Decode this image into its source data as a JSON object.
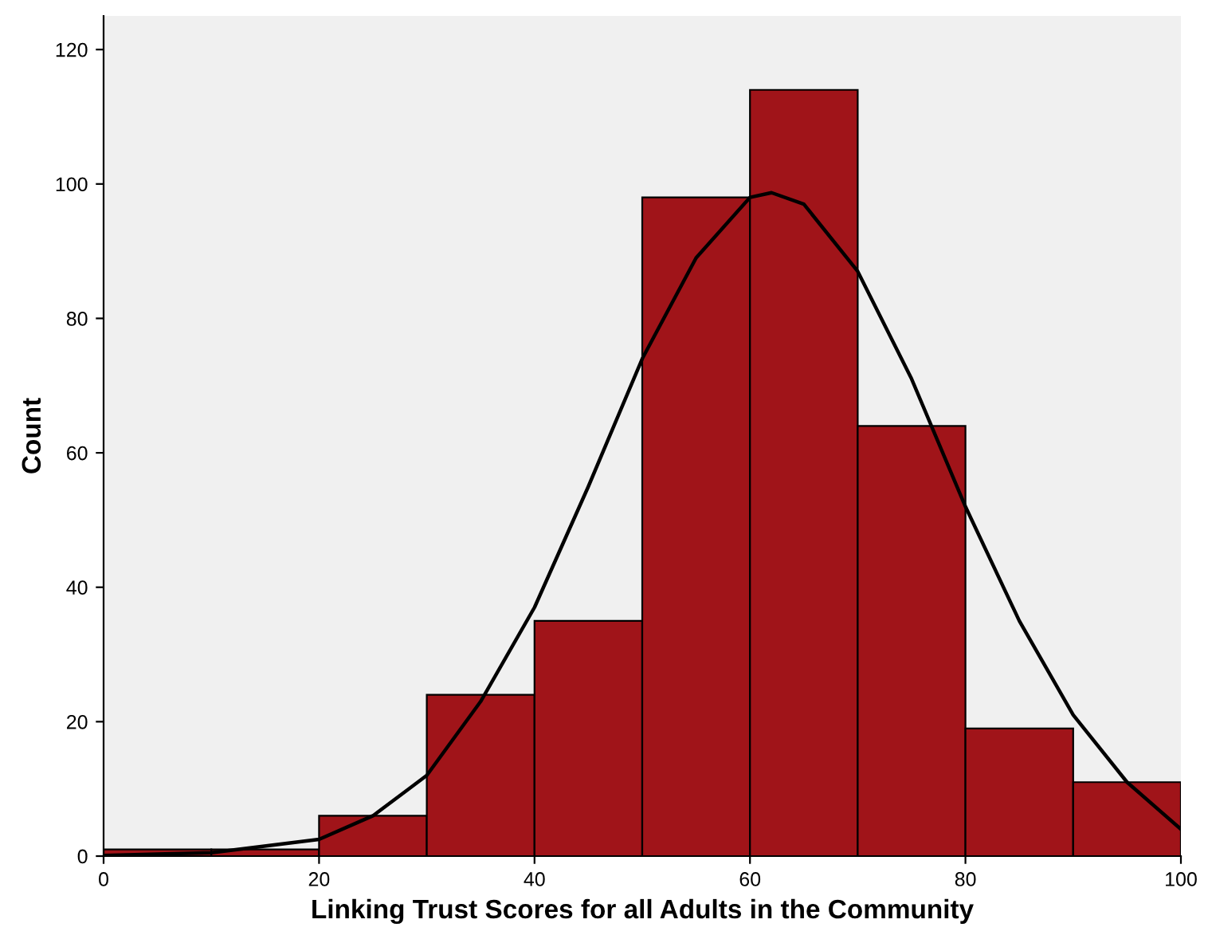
{
  "chart_data": {
    "type": "histogram",
    "xlabel": "Linking Trust Scores for all Adults in the Community",
    "ylabel": "Count",
    "bins": [
      0,
      10,
      20,
      30,
      40,
      50,
      60,
      70,
      80,
      90,
      100
    ],
    "values": [
      1,
      1,
      6,
      24,
      35,
      98,
      114,
      64,
      19,
      11
    ],
    "color": "#a01419",
    "series": [
      {
        "type": "line",
        "color": "#000000",
        "x": [
          0,
          10,
          20,
          25,
          30,
          35,
          40,
          45,
          50,
          55,
          60,
          62,
          65,
          70,
          75,
          80,
          85,
          90,
          95,
          100
        ],
        "values": [
          0.1,
          0.5,
          2.5,
          6,
          12,
          23,
          37,
          55,
          74,
          89,
          98,
          98.7,
          97,
          87,
          71,
          52,
          35,
          21,
          11,
          4
        ]
      }
    ],
    "xlim": [
      0,
      100
    ],
    "ylim": [
      0,
      125
    ],
    "xticks": [
      0,
      20,
      40,
      60,
      80,
      100
    ],
    "yticks": [
      0,
      20,
      40,
      60,
      80,
      100,
      120
    ],
    "grid": false,
    "legend": false
  }
}
